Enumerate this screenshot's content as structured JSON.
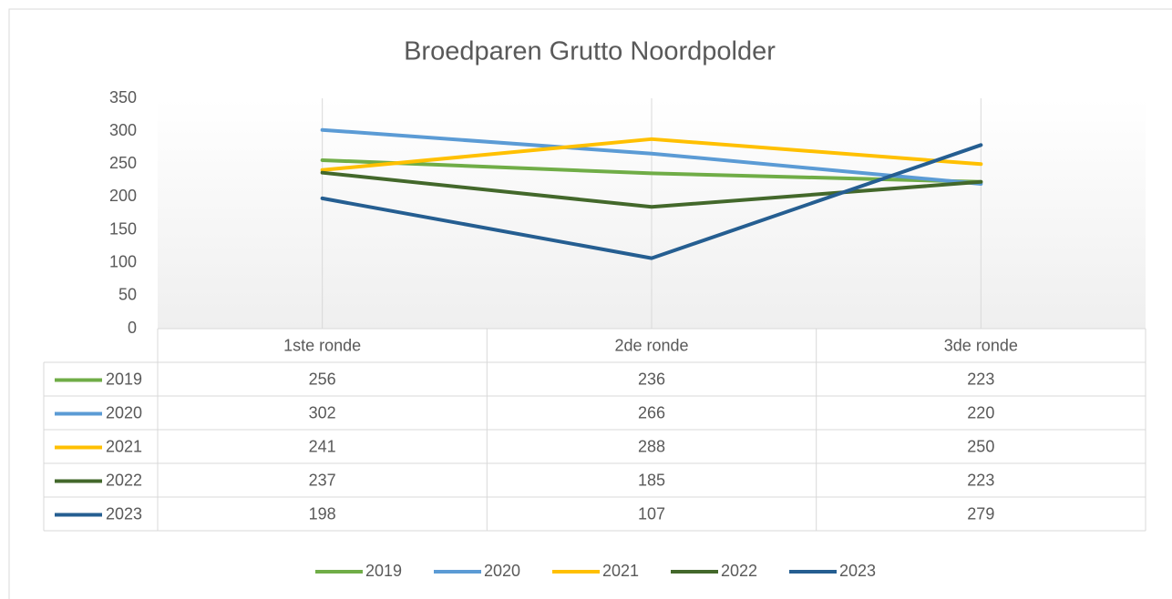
{
  "chart_data": {
    "type": "line",
    "title": "Broedparen Grutto Noordpolder",
    "categories": [
      "1ste ronde",
      "2de ronde",
      "3de ronde"
    ],
    "series": [
      {
        "name": "2019",
        "color": "#70ad47",
        "values": [
          256,
          236,
          223
        ]
      },
      {
        "name": "2020",
        "color": "#5b9bd5",
        "values": [
          302,
          266,
          220
        ]
      },
      {
        "name": "2021",
        "color": "#ffc000",
        "values": [
          241,
          288,
          250
        ]
      },
      {
        "name": "2022",
        "color": "#43682b",
        "values": [
          237,
          185,
          223
        ]
      },
      {
        "name": "2023",
        "color": "#255e91",
        "values": [
          198,
          107,
          279
        ]
      }
    ],
    "ylim": [
      0,
      350
    ],
    "yticks": [
      0,
      50,
      100,
      150,
      200,
      250,
      300,
      350
    ],
    "grid": "x",
    "data_table": true,
    "legend": "bottom"
  }
}
